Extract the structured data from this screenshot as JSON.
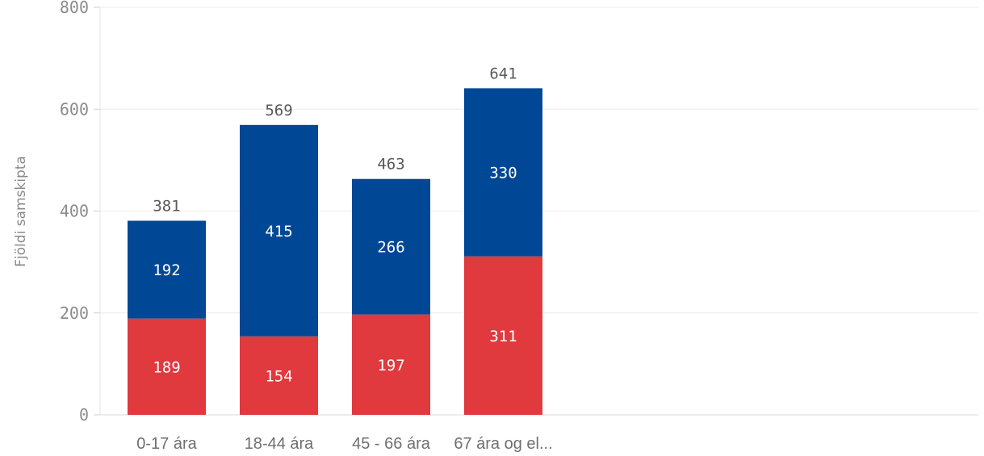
{
  "chart_data": {
    "type": "bar",
    "stacked": true,
    "categories": [
      "0-17 ára",
      "18-44 ára",
      "45 - 66 ára",
      "67 ára og el..."
    ],
    "series": [
      {
        "values": [
          189,
          154,
          197,
          311
        ],
        "color": "#e0393e"
      },
      {
        "values": [
          192,
          415,
          266,
          330
        ],
        "color": "#004896"
      }
    ],
    "totals": [
      381,
      569,
      463,
      641
    ],
    "ylabel": "Fjöldi samskipta",
    "xlabel": "",
    "ylim": [
      0,
      800
    ],
    "yticks": [
      0,
      200,
      400,
      600,
      800
    ],
    "grid": true,
    "legend": "none"
  }
}
